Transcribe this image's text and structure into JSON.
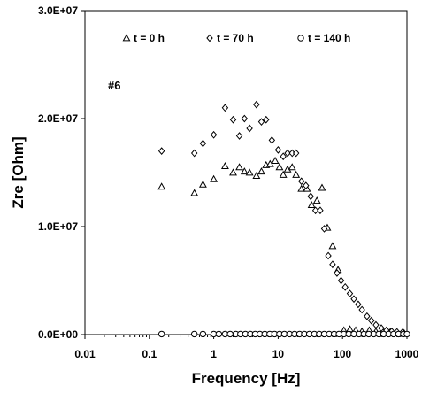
{
  "chart_data": {
    "type": "scatter",
    "title": "",
    "xlabel": "Frequency [Hz]",
    "ylabel": "Zre [Ohm]",
    "x_scale": "log",
    "xlim": [
      0.01,
      1000
    ],
    "ylim": [
      0,
      30000000
    ],
    "x_ticks": [
      {
        "value": 0.01,
        "label": "0.01"
      },
      {
        "value": 0.1,
        "label": "0.1"
      },
      {
        "value": 1,
        "label": "1"
      },
      {
        "value": 10,
        "label": "10"
      },
      {
        "value": 100,
        "label": "100"
      },
      {
        "value": 1000,
        "label": "1000"
      }
    ],
    "y_ticks": [
      {
        "value": 0,
        "label": "0.0E+00"
      },
      {
        "value": 10000000,
        "label": "1.0E+07"
      },
      {
        "value": 20000000,
        "label": "2.0E+07"
      },
      {
        "value": 30000000,
        "label": "3.0E+07"
      }
    ],
    "grid": false,
    "legend_placement": "top",
    "annotation": "#6",
    "series": [
      {
        "name": "t = 0 h",
        "marker": "triangle",
        "x": [
          0.155,
          0.5,
          0.68,
          1.0,
          1.5,
          2.0,
          2.5,
          3.0,
          3.6,
          4.6,
          5.5,
          6.5,
          7.5,
          9.0,
          10.5,
          12.0,
          14.0,
          16.5,
          19.0,
          23.0,
          28.0,
          33.0,
          40.0,
          48.0,
          58.0,
          70.0,
          85.0,
          105.0,
          130.0,
          160.0,
          200.0,
          260.0,
          330.0,
          420.0,
          550.0,
          700.0,
          900.0
        ],
        "y": [
          13700000,
          13100000,
          13900000,
          14400000,
          15600000,
          15000000,
          15500000,
          15100000,
          15000000,
          14700000,
          15100000,
          15700000,
          15800000,
          16100000,
          15500000,
          14800000,
          15300000,
          15500000,
          14800000,
          13500000,
          13500000,
          12000000,
          12400000,
          13600000,
          9900000,
          8200000,
          6000000,
          400000,
          500000,
          400000,
          300000,
          400000,
          300000,
          300000,
          250000,
          200000,
          150000
        ]
      },
      {
        "name": "t = 70 h",
        "marker": "diamond",
        "x": [
          0.155,
          0.5,
          0.68,
          1.0,
          1.5,
          2.0,
          2.5,
          3.0,
          3.6,
          4.6,
          5.5,
          6.5,
          8.0,
          10.0,
          12.0,
          14.0,
          16.5,
          19.0,
          23.0,
          27.0,
          32.0,
          38.0,
          45.0,
          52.0,
          60.0,
          70.0,
          82.0,
          95.0,
          110.0,
          130.0,
          150.0,
          175.0,
          200.0,
          240.0,
          280.0,
          330.0,
          400.0,
          480.0,
          580.0,
          700.0,
          850.0
        ],
        "y": [
          17000000,
          16800000,
          17700000,
          18500000,
          21000000,
          19900000,
          18400000,
          20000000,
          19100000,
          21300000,
          19700000,
          19900000,
          18000000,
          17100000,
          16500000,
          16800000,
          16800000,
          16800000,
          14200000,
          13800000,
          12800000,
          11500000,
          11500000,
          9800000,
          7300000,
          6500000,
          5700000,
          5000000,
          4400000,
          3800000,
          3300000,
          2800000,
          2300000,
          1700000,
          1300000,
          900000,
          600000,
          400000,
          300000,
          250000,
          200000
        ]
      },
      {
        "name": "t = 140 h",
        "marker": "circle",
        "x": [
          0.155,
          0.5,
          0.68,
          1.0,
          1.2,
          1.5,
          1.8,
          2.2,
          2.6,
          3.1,
          3.7,
          4.4,
          5.2,
          6.2,
          7.4,
          8.8,
          10.5,
          12.5,
          15.0,
          18.0,
          21.5,
          25.5,
          30.5,
          36.5,
          43.5,
          52.0,
          62.0,
          74.0,
          88.0,
          105.0,
          125.0,
          150.0,
          180.0,
          215.0,
          255.0,
          305.0,
          365.0,
          435.0,
          520.0,
          620.0,
          740.0,
          880.0,
          1000.0
        ],
        "y": [
          50000,
          50000,
          50000,
          50000,
          50000,
          50000,
          50000,
          50000,
          50000,
          50000,
          50000,
          50000,
          50000,
          50000,
          50000,
          50000,
          50000,
          50000,
          50000,
          50000,
          50000,
          50000,
          50000,
          50000,
          50000,
          50000,
          50000,
          50000,
          50000,
          50000,
          50000,
          50000,
          50000,
          50000,
          50000,
          50000,
          50000,
          50000,
          50000,
          50000,
          50000,
          50000,
          50000
        ]
      }
    ]
  }
}
